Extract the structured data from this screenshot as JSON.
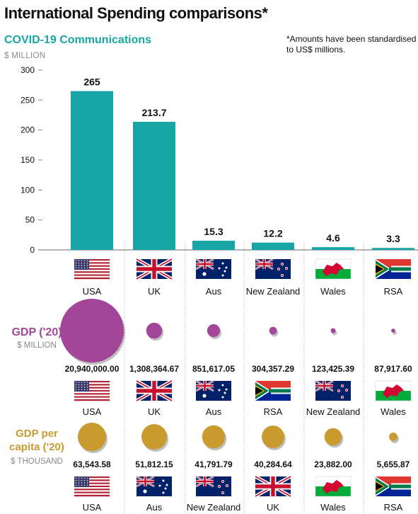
{
  "title": "International Spending comparisons*",
  "subtitle": "COVID-19 Communications",
  "unit": "$ MILLION",
  "footnote": "*Amounts have been standardised to US$ millions.",
  "colors": {
    "bar": "#17a5a5",
    "gdp_bubble": "#a3469a",
    "gdp_capita_bubble": "#c99a2e",
    "subtitle": "#17a5a5",
    "grid": "#888888"
  },
  "chart_data": [
    {
      "type": "bar",
      "title": "COVID-19 Communications",
      "ylabel": "$ MILLION",
      "categories": [
        "USA",
        "UK",
        "Aus",
        "New Zealand",
        "Wales",
        "RSA"
      ],
      "flags": [
        "usa",
        "uk",
        "aus",
        "nz",
        "wales",
        "rsa"
      ],
      "values": [
        265,
        213.7,
        15.3,
        12.2,
        4.6,
        3.3
      ],
      "value_labels": [
        "265",
        "213.7",
        "15.3",
        "12.2",
        "4.6",
        "3.3"
      ],
      "y_ticks": [
        "0",
        "50",
        "100",
        "150",
        "200",
        "250",
        "300"
      ],
      "ylim": [
        0,
        300
      ]
    },
    {
      "type": "scatter",
      "title": "GDP ('20)",
      "ylabel": "$ MILLION",
      "categories": [
        "USA",
        "UK",
        "Aus",
        "RSA",
        "New Zealand",
        "Wales"
      ],
      "flags": [
        "usa",
        "uk",
        "aus",
        "rsa",
        "nz",
        "wales"
      ],
      "values": [
        20940000.0,
        1308364.67,
        851617.05,
        304357.29,
        123425.39,
        87917.6
      ],
      "value_labels": [
        "20,940,000.00",
        "1,308,364.67",
        "851,617.05",
        "304,357.29",
        "123,425.39",
        "87,917.60"
      ]
    },
    {
      "type": "scatter",
      "title": "GDP per capita ('20)",
      "title_lines": [
        "GDP per",
        "capita ('20)"
      ],
      "ylabel": "$ THOUSAND",
      "categories": [
        "USA",
        "Aus",
        "New Zealand",
        "UK",
        "Wales",
        "RSA"
      ],
      "flags": [
        "usa",
        "aus",
        "nz",
        "uk",
        "wales",
        "rsa"
      ],
      "values": [
        63543.58,
        51812.15,
        41791.79,
        40284.64,
        23882.0,
        5655.87
      ],
      "value_labels": [
        "63,543.58",
        "51,812.15",
        "41,791.79",
        "40,284.64",
        "23,882.00",
        "5,655.87"
      ]
    }
  ]
}
